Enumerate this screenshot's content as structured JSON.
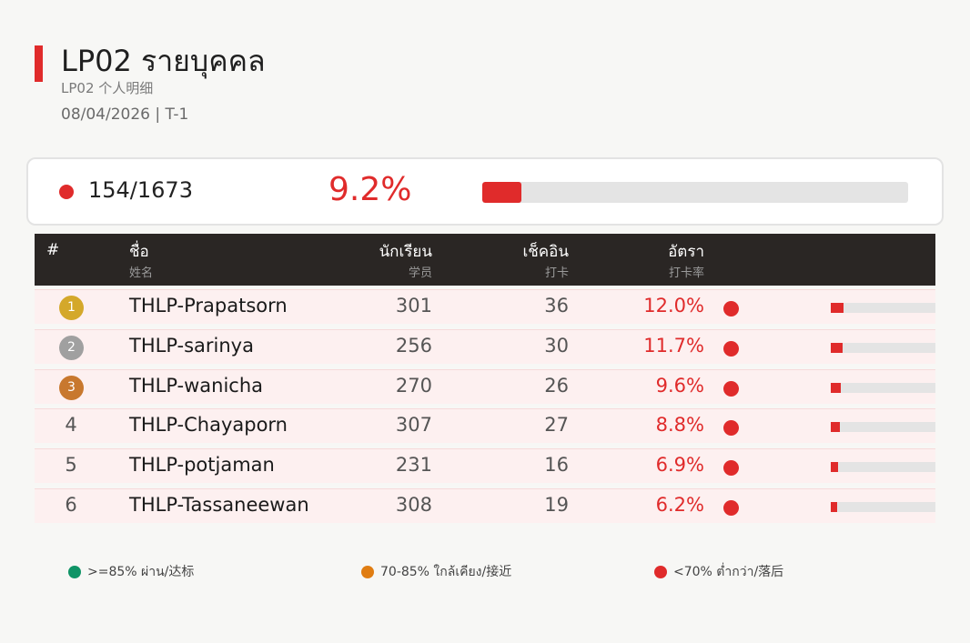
{
  "header": {
    "title": "LP02  รายบุคคล",
    "subtitle": "LP02  个人明细",
    "dateline": "08/04/2026   |   T-1"
  },
  "summary": {
    "count": "154/1673",
    "percent": "9.2%",
    "progress_fraction": 0.092,
    "status_color": "#e02b2b"
  },
  "table": {
    "columns": {
      "rank": "#",
      "name": "ชื่อ",
      "name_sub": "姓名",
      "students": "นักเรียน",
      "students_sub": "学员",
      "checkin": "เช็คอิน",
      "checkin_sub": "打卡",
      "rate": "อัตรา",
      "rate_sub": "打卡率"
    },
    "rows": [
      {
        "rank": "1",
        "medal": "gold",
        "name": "THLP-Prapatsorn",
        "students": "301",
        "checkin": "36",
        "rate": "12.0%",
        "rate_fraction": 0.12
      },
      {
        "rank": "2",
        "medal": "silver",
        "name": "THLP-sarinya",
        "students": "256",
        "checkin": "30",
        "rate": "11.7%",
        "rate_fraction": 0.117
      },
      {
        "rank": "3",
        "medal": "bronze",
        "name": "THLP-wanicha",
        "students": "270",
        "checkin": "26",
        "rate": "9.6%",
        "rate_fraction": 0.096
      },
      {
        "rank": "4",
        "medal": "",
        "name": "THLP-Chayaporn",
        "students": "307",
        "checkin": "27",
        "rate": "8.8%",
        "rate_fraction": 0.088
      },
      {
        "rank": "5",
        "medal": "",
        "name": "THLP-potjaman",
        "students": "231",
        "checkin": "16",
        "rate": "6.9%",
        "rate_fraction": 0.069
      },
      {
        "rank": "6",
        "medal": "",
        "name": "THLP-Tassaneewan",
        "students": "308",
        "checkin": "19",
        "rate": "6.2%",
        "rate_fraction": 0.062
      }
    ]
  },
  "legend": [
    {
      "label": ">=85% ผ่าน/达标",
      "color": "#0f9466"
    },
    {
      "label": "70-85% ใกล้เคียง/接近",
      "color": "#e07d12"
    },
    {
      "label": "<70% ต่ำกว่า/落后",
      "color": "#e02b2b"
    }
  ],
  "colors": {
    "accent": "#e02b2b",
    "medal_gold": "#d4a82a",
    "medal_silver": "#a0a0a0",
    "medal_bronze": "#c8782e",
    "header_bg": "#2a2624"
  }
}
